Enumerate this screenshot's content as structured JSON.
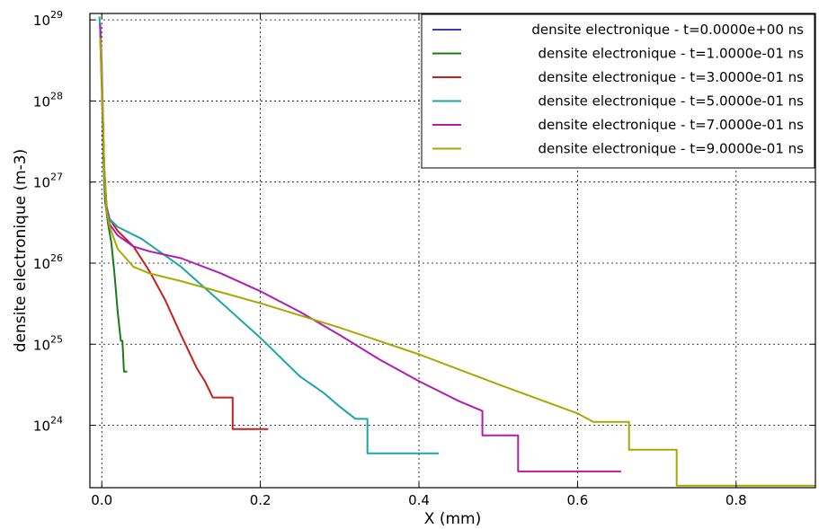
{
  "chart_data": {
    "type": "line",
    "xlabel": "X (mm)",
    "ylabel": "densite electronique (m-3)",
    "yscale": "log",
    "xlim": [
      -0.015,
      0.9
    ],
    "ylim": [
      1.7e+23,
      1.2e+29
    ],
    "grid": true,
    "legend_position": "top-right",
    "x_ticks": [
      {
        "value": 0.0,
        "label": "0.0"
      },
      {
        "value": 0.2,
        "label": "0.2"
      },
      {
        "value": 0.4,
        "label": "0.4"
      },
      {
        "value": 0.6,
        "label": "0.6"
      },
      {
        "value": 0.8,
        "label": "0.8"
      }
    ],
    "y_ticks": [
      {
        "value": 1e+24,
        "base": "10",
        "exp": "24"
      },
      {
        "value": 1e+25,
        "base": "10",
        "exp": "25"
      },
      {
        "value": 1e+26,
        "base": "10",
        "exp": "26"
      },
      {
        "value": 1e+27,
        "base": "10",
        "exp": "27"
      },
      {
        "value": 1e+28,
        "base": "10",
        "exp": "28"
      },
      {
        "value": 1e+29,
        "base": "10",
        "exp": "29"
      }
    ],
    "series": [
      {
        "name": "densite electronique - t=0.0000e+00 ns",
        "color": "#3a3ab8",
        "x": [
          0.0,
          0.0
        ],
        "y": [
          8e+28,
          8e+28
        ]
      },
      {
        "name": "densite electronique - t=1.0000e-01 ns",
        "color": "#1a7a1a",
        "x": [
          -0.002,
          0.0,
          0.002,
          0.004,
          0.008,
          0.012,
          0.016,
          0.02,
          0.024,
          0.026,
          0.028,
          0.032
        ],
        "y": [
          7e+28,
          2e+28,
          2e+27,
          6e+26,
          3e+26,
          1.8e+26,
          7.5e+25,
          2.5e+25,
          1.1e+25,
          1.1e+25,
          4.6e+24,
          4.6e+24
        ]
      },
      {
        "name": "densite electronique - t=3.0000e-01 ns",
        "color": "#c81e1e",
        "x": [
          -0.002,
          0.0,
          0.003,
          0.006,
          0.01,
          0.02,
          0.04,
          0.06,
          0.08,
          0.1,
          0.12,
          0.13,
          0.14,
          0.15,
          0.165,
          0.165,
          0.21
        ],
        "y": [
          6e+28,
          1.5e+28,
          1.5e+27,
          5e+26,
          3.5e+26,
          2.5e+26,
          1.6e+26,
          8e+25,
          3.5e+25,
          1.3e+25,
          5e+24,
          3.5e+24,
          2.2e+24,
          2.2e+24,
          2.2e+24,
          9e+23,
          9e+23
        ]
      },
      {
        "name": "densite electronique - t=5.0000e-01 ns",
        "color": "#1aa6a6",
        "x": [
          -0.003,
          0.0,
          0.003,
          0.006,
          0.01,
          0.02,
          0.05,
          0.1,
          0.15,
          0.2,
          0.25,
          0.28,
          0.3,
          0.32,
          0.335,
          0.335,
          0.425
        ],
        "y": [
          1.1e+29,
          3e+28,
          1.5e+27,
          5e+26,
          3.5e+26,
          2.8e+26,
          2e+26,
          9e+25,
          3.3e+25,
          1.2e+25,
          4e+24,
          2.5e+24,
          1.7e+24,
          1.2e+24,
          1.2e+24,
          4.5e+23,
          4.5e+23
        ]
      },
      {
        "name": "densite electronique - t=7.0000e-01 ns",
        "color": "#b01eb0",
        "x": [
          -0.002,
          0.0,
          0.003,
          0.006,
          0.01,
          0.02,
          0.04,
          0.06,
          0.1,
          0.15,
          0.2,
          0.25,
          0.3,
          0.35,
          0.4,
          0.45,
          0.48,
          0.48,
          0.525,
          0.525,
          0.655
        ],
        "y": [
          9e+28,
          2e+28,
          1.5e+27,
          5e+26,
          3e+26,
          2.2e+26,
          1.6e+26,
          1.4e+26,
          1.15e+26,
          7.5e+25,
          4.5e+25,
          2.5e+25,
          1.3e+25,
          6.5e+24,
          3.5e+24,
          2e+24,
          1.5e+24,
          7.5e+23,
          7.5e+23,
          2.7e+23,
          2.7e+23
        ]
      },
      {
        "name": "densite electronique - t=9.0000e-01 ns",
        "color": "#a8a800",
        "x": [
          -0.002,
          0.0,
          0.003,
          0.006,
          0.01,
          0.02,
          0.04,
          0.06,
          0.1,
          0.2,
          0.3,
          0.4,
          0.5,
          0.6,
          0.62,
          0.665,
          0.665,
          0.725,
          0.725,
          0.9
        ],
        "y": [
          6e+28,
          2e+28,
          1.5e+27,
          4.5e+26,
          2.8e+26,
          1.5e+26,
          9e+25,
          7.5e+25,
          6e+25,
          3.2e+25,
          1.6e+25,
          7.5e+24,
          3.2e+24,
          1.4e+24,
          1.1e+24,
          1.1e+24,
          5e+23,
          5e+23,
          1.8e+23,
          1.8e+23
        ]
      }
    ]
  }
}
